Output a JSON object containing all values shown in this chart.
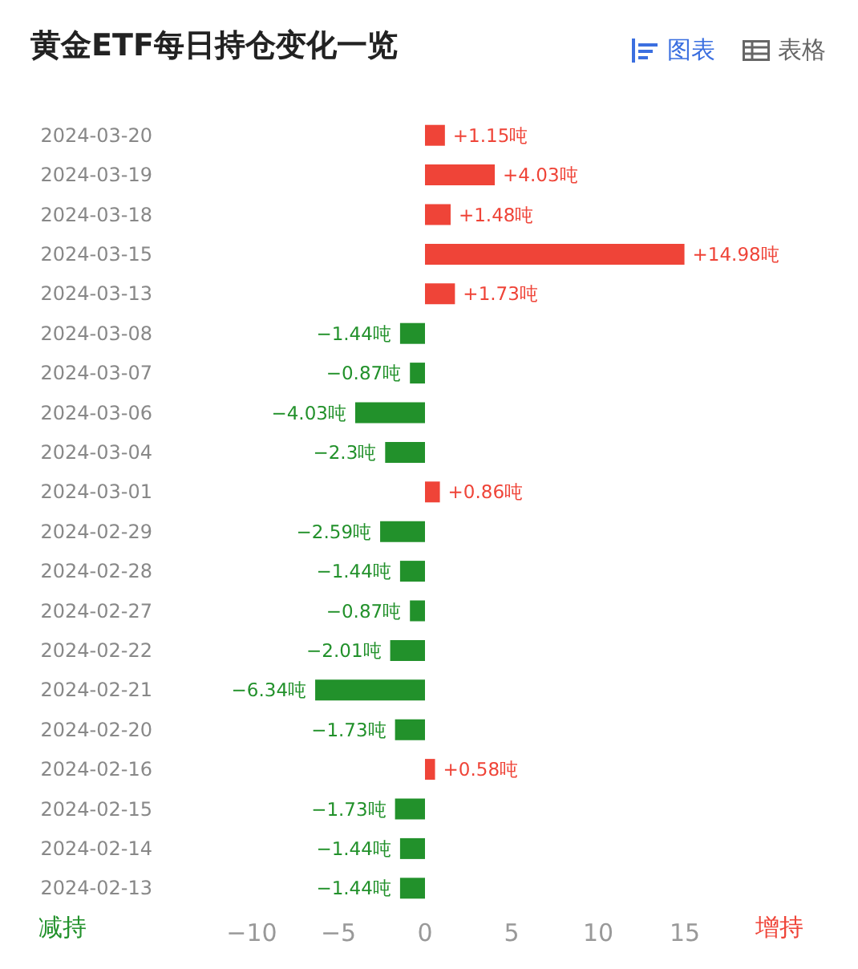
{
  "chart_data": {
    "type": "bar",
    "orientation": "horizontal",
    "title": "黄金ETF每日持仓变化一览",
    "categories": [
      "2024-03-20",
      "2024-03-19",
      "2024-03-18",
      "2024-03-15",
      "2024-03-13",
      "2024-03-08",
      "2024-03-07",
      "2024-03-06",
      "2024-03-04",
      "2024-03-01",
      "2024-02-29",
      "2024-02-28",
      "2024-02-27",
      "2024-02-22",
      "2024-02-21",
      "2024-02-20",
      "2024-02-16",
      "2024-02-15",
      "2024-02-14",
      "2024-02-13"
    ],
    "values": [
      1.15,
      4.03,
      1.48,
      14.98,
      1.73,
      -1.44,
      -0.87,
      -4.03,
      -2.3,
      0.86,
      -2.59,
      -1.44,
      -0.87,
      -2.01,
      -6.34,
      -1.73,
      0.58,
      -1.73,
      -1.44,
      -1.44
    ],
    "colors": [
      "#ef4438",
      "#ef4438",
      "#ef4438",
      "#ef4438",
      "#ef4438",
      "#22912b",
      "#22912b",
      "#22912b",
      "#22912b",
      "#ef4438",
      "#22912b",
      "#22912b",
      "#22912b",
      "#22912b",
      "#22912b",
      "#22912b",
      "#ef4438",
      "#22912b",
      "#22912b",
      "#22912b"
    ],
    "value_labels": [
      "+1.15吨",
      "+4.03吨",
      "+1.48吨",
      "+14.98吨",
      "+1.73吨",
      "−1.44吨",
      "−0.87吨",
      "−4.03吨",
      "−2.3吨",
      "+0.86吨",
      "−2.59吨",
      "−1.44吨",
      "−0.87吨",
      "−2.01吨",
      "−6.34吨",
      "−1.73吨",
      "+0.58吨",
      "−1.73吨",
      "−1.44吨",
      "−1.44吨"
    ],
    "xlim": [
      -10,
      15
    ],
    "xticks": [
      {
        "value": -10,
        "label": "−10"
      },
      {
        "value": -5,
        "label": "−5"
      },
      0,
      5,
      10,
      15
    ],
    "grid": false,
    "annotations": [
      "减持",
      "增持",
      "图表",
      "表格"
    ]
  }
}
